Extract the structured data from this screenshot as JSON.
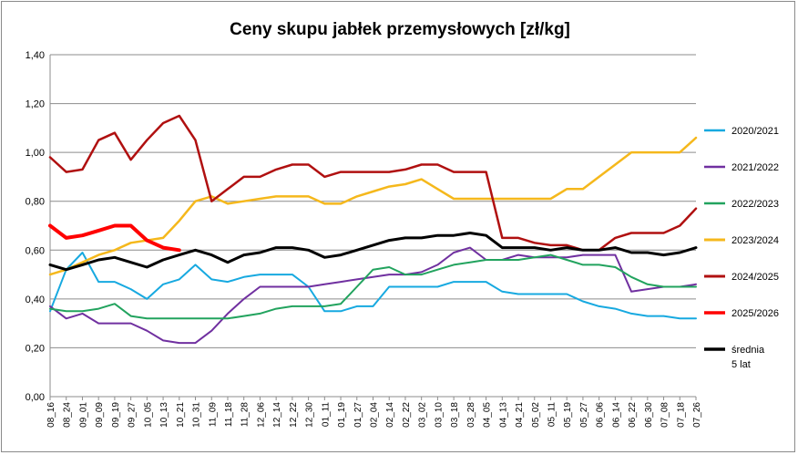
{
  "chart_data": {
    "type": "line",
    "title": "Ceny skupu jabłek przemysłowych [zł/kg]",
    "xlabel": "",
    "ylabel": "",
    "ylim": [
      0,
      1.4
    ],
    "yticks": [
      "0,00",
      "0,20",
      "0,40",
      "0,60",
      "0,80",
      "1,00",
      "1,20",
      "1,40"
    ],
    "grid": "horizontal",
    "legend_position": "right",
    "categories": [
      "08_16",
      "08_24",
      "09_01",
      "09_09",
      "09_19",
      "09_27",
      "10_05",
      "10_13",
      "10_21",
      "10_31",
      "11_09",
      "11_18",
      "11_28",
      "12_06",
      "12_14",
      "12_22",
      "12_30",
      "01_11",
      "01_19",
      "01_27",
      "02_04",
      "02_14",
      "02_22",
      "03_02",
      "03_10",
      "03_18",
      "03_28",
      "04_05",
      "04_13",
      "04_21",
      "05_02",
      "05_11",
      "05_19",
      "05_27",
      "06_06",
      "06_14",
      "06_22",
      "06_30",
      "07_08",
      "07_18",
      "07_26"
    ],
    "series": [
      {
        "name": "2020/2021",
        "color": "#17a9e0",
        "width": 2,
        "values": [
          0.35,
          0.52,
          0.59,
          0.47,
          0.47,
          0.44,
          0.4,
          0.46,
          0.48,
          0.54,
          0.48,
          0.47,
          0.49,
          0.5,
          0.5,
          0.5,
          0.45,
          0.35,
          0.35,
          0.37,
          0.37,
          0.45,
          0.45,
          0.45,
          0.45,
          0.47,
          0.47,
          0.47,
          0.43,
          0.42,
          0.42,
          0.42,
          0.42,
          0.39,
          0.37,
          0.36,
          0.34,
          0.33,
          0.33,
          0.32,
          0.32
        ]
      },
      {
        "name": "2021/2022",
        "color": "#7030a0",
        "width": 2,
        "values": [
          0.37,
          0.32,
          0.34,
          0.3,
          0.3,
          0.3,
          0.27,
          0.23,
          0.22,
          0.22,
          0.27,
          0.34,
          0.4,
          0.45,
          0.45,
          0.45,
          0.45,
          0.46,
          0.47,
          0.48,
          0.49,
          0.5,
          0.5,
          0.51,
          0.54,
          0.59,
          0.61,
          0.56,
          0.56,
          0.58,
          0.57,
          0.57,
          0.57,
          0.58,
          0.58,
          0.58,
          0.43,
          0.44,
          0.45,
          0.45,
          0.46
        ]
      },
      {
        "name": "2022/2023",
        "color": "#22a35e",
        "width": 2,
        "values": [
          0.36,
          0.35,
          0.35,
          0.36,
          0.38,
          0.33,
          0.32,
          0.32,
          0.32,
          0.32,
          0.32,
          0.32,
          0.33,
          0.34,
          0.36,
          0.37,
          0.37,
          0.37,
          0.38,
          0.45,
          0.52,
          0.53,
          0.5,
          0.5,
          0.52,
          0.54,
          0.55,
          0.56,
          0.56,
          0.56,
          0.57,
          0.58,
          0.56,
          0.54,
          0.54,
          0.53,
          0.49,
          0.46,
          0.45,
          0.45,
          0.45
        ]
      },
      {
        "name": "2023/2024",
        "color": "#f5b81c",
        "width": 2.5,
        "values": [
          0.5,
          0.52,
          0.55,
          0.58,
          0.6,
          0.63,
          0.64,
          0.65,
          0.72,
          0.8,
          0.82,
          0.79,
          0.8,
          0.81,
          0.82,
          0.82,
          0.82,
          0.79,
          0.79,
          0.82,
          0.84,
          0.86,
          0.87,
          0.89,
          0.85,
          0.81,
          0.81,
          0.81,
          0.81,
          0.81,
          0.81,
          0.81,
          0.85,
          0.85,
          0.9,
          0.95,
          1.0,
          1.0,
          1.0,
          1.0,
          1.06
        ]
      },
      {
        "name": "2024/2025",
        "color": "#b01010",
        "width": 2.5,
        "values": [
          0.98,
          0.92,
          0.93,
          1.05,
          1.08,
          0.97,
          1.05,
          1.12,
          1.15,
          1.05,
          0.8,
          0.85,
          0.9,
          0.9,
          0.93,
          0.95,
          0.95,
          0.9,
          0.92,
          0.92,
          0.92,
          0.92,
          0.93,
          0.95,
          0.95,
          0.92,
          0.92,
          0.92,
          0.65,
          0.65,
          0.63,
          0.62,
          0.62,
          0.6,
          0.6,
          0.65,
          0.67,
          0.67,
          0.67,
          0.7,
          0.77
        ]
      },
      {
        "name": "2025/2026",
        "color": "#ff0000",
        "width": 4,
        "values": [
          0.7,
          0.65,
          0.66,
          0.68,
          0.7,
          0.7,
          0.64,
          0.61,
          0.6,
          null,
          null,
          null,
          null,
          null,
          null,
          null,
          null,
          null,
          null,
          null,
          null,
          null,
          null,
          null,
          null,
          null,
          null,
          null,
          null,
          null,
          null,
          null,
          null,
          null,
          null,
          null,
          null,
          null,
          null,
          null,
          null
        ]
      },
      {
        "name": "średnia 5 lat",
        "color": "#000000",
        "width": 3,
        "values": [
          0.54,
          0.52,
          0.54,
          0.56,
          0.57,
          0.55,
          0.53,
          0.56,
          0.58,
          0.6,
          0.58,
          0.55,
          0.58,
          0.59,
          0.61,
          0.61,
          0.6,
          0.57,
          0.58,
          0.6,
          0.62,
          0.64,
          0.65,
          0.65,
          0.66,
          0.66,
          0.67,
          0.66,
          0.61,
          0.61,
          0.61,
          0.6,
          0.61,
          0.6,
          0.6,
          0.61,
          0.59,
          0.59,
          0.58,
          0.59,
          0.61
        ]
      }
    ]
  }
}
